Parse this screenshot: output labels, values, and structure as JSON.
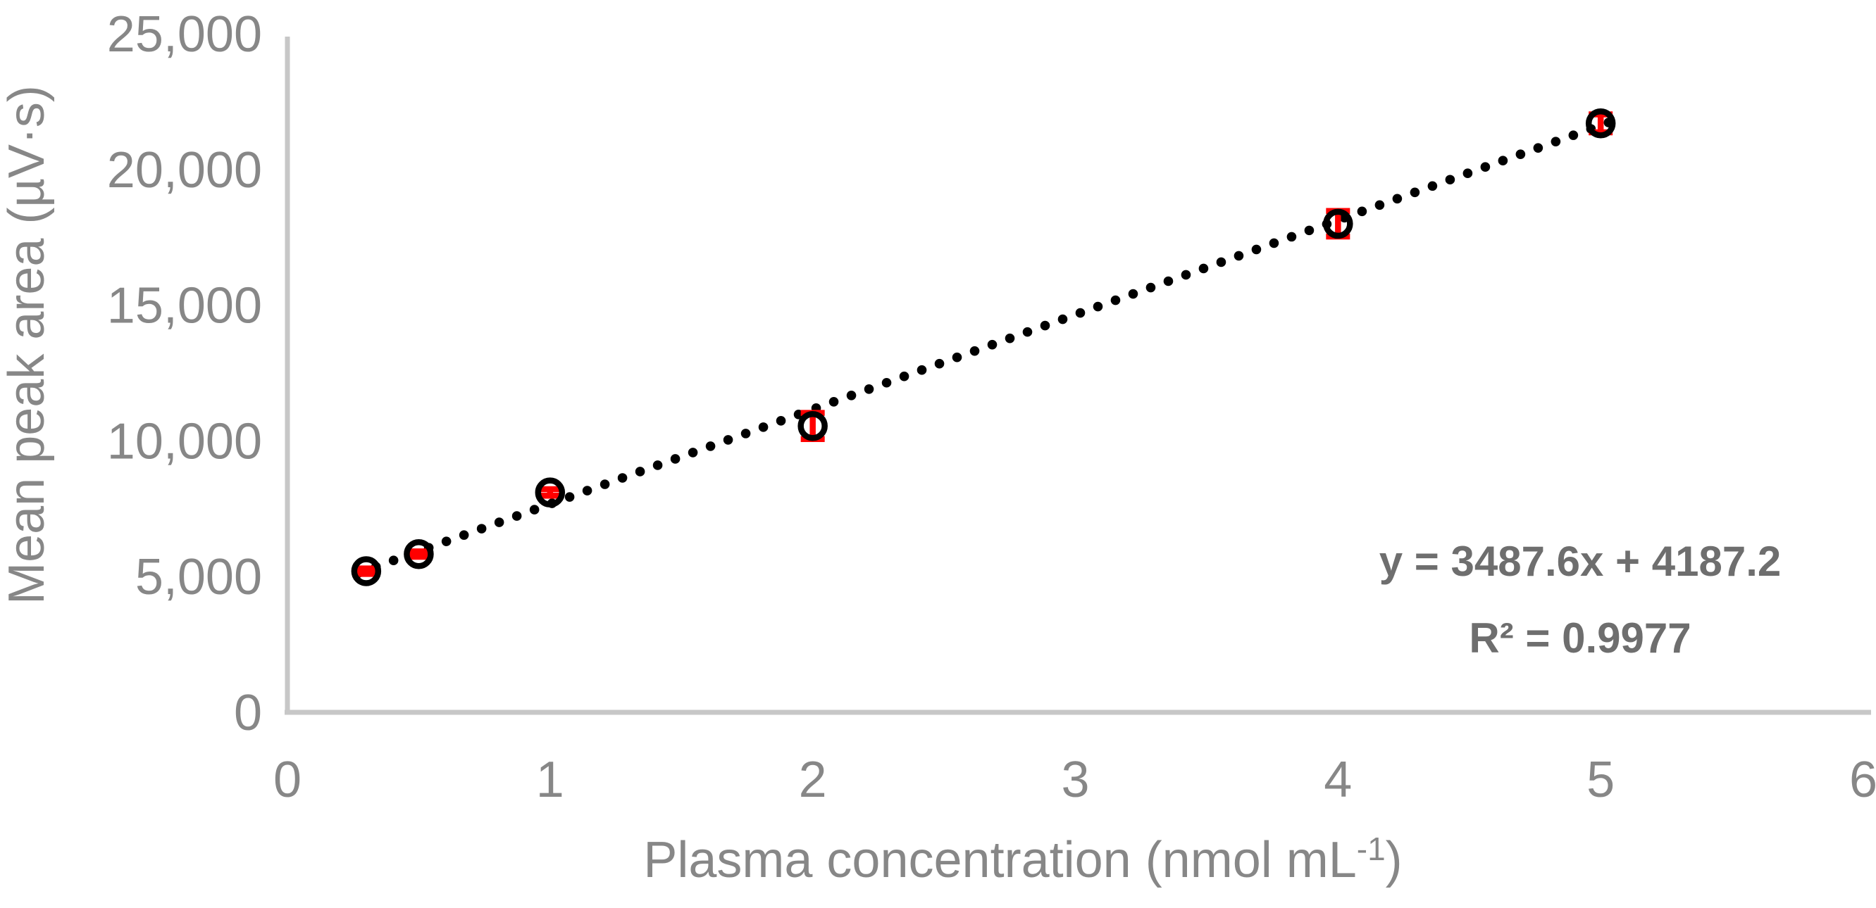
{
  "chart_data": {
    "type": "scatter",
    "title": "",
    "xlabel": "Plasma concentration (nmol mL⁻¹)",
    "xlabel_parts": {
      "pre": "Plasma concentration (nmol mL",
      "sup": "-1",
      "post": ")"
    },
    "ylabel": "Mean peak area (µV·s)",
    "xlim": [
      0,
      6
    ],
    "ylim": [
      0,
      25000
    ],
    "grid": false,
    "legend": "none",
    "x_ticks": [
      {
        "value": 0,
        "label": "0"
      },
      {
        "value": 1,
        "label": "1"
      },
      {
        "value": 2,
        "label": "2"
      },
      {
        "value": 3,
        "label": "3"
      },
      {
        "value": 4,
        "label": "4"
      },
      {
        "value": 5,
        "label": "5"
      },
      {
        "value": 6,
        "label": "6"
      }
    ],
    "y_ticks": [
      {
        "value": 0,
        "label": "0"
      },
      {
        "value": 5000,
        "label": "5,000"
      },
      {
        "value": 10000,
        "label": "10,000"
      },
      {
        "value": 15000,
        "label": "15,000"
      },
      {
        "value": 20000,
        "label": "20,000"
      },
      {
        "value": 25000,
        "label": "25,000"
      }
    ],
    "series": [
      {
        "name": "Mean peak area",
        "marker": "open-circle",
        "points": [
          {
            "x": 0.3,
            "y": 5200,
            "yerr": 100
          },
          {
            "x": 0.5,
            "y": 5830,
            "yerr": 100
          },
          {
            "x": 1,
            "y": 8100,
            "yerr": 120
          },
          {
            "x": 2,
            "y": 10550,
            "yerr": 480
          },
          {
            "x": 4,
            "y": 18000,
            "yerr": 470
          },
          {
            "x": 5,
            "y": 21700,
            "yerr": 330
          }
        ]
      }
    ],
    "trendline": {
      "style": "dotted",
      "slope": 3487.6,
      "intercept": 4187.2,
      "x_start": 0.27,
      "x_end": 5.03,
      "equation": "y = 3487.6x + 4187.2",
      "r_squared": "R² = 0.9977"
    },
    "colors": {
      "background": "#ffffff",
      "axis_line": "#c7c7c7",
      "tick_label": "#878787",
      "axis_title": "#878787",
      "equation_text": "#6e6e6e",
      "marker": "#000000",
      "trendline": "#000000",
      "error_bar": "#ff0000"
    }
  }
}
